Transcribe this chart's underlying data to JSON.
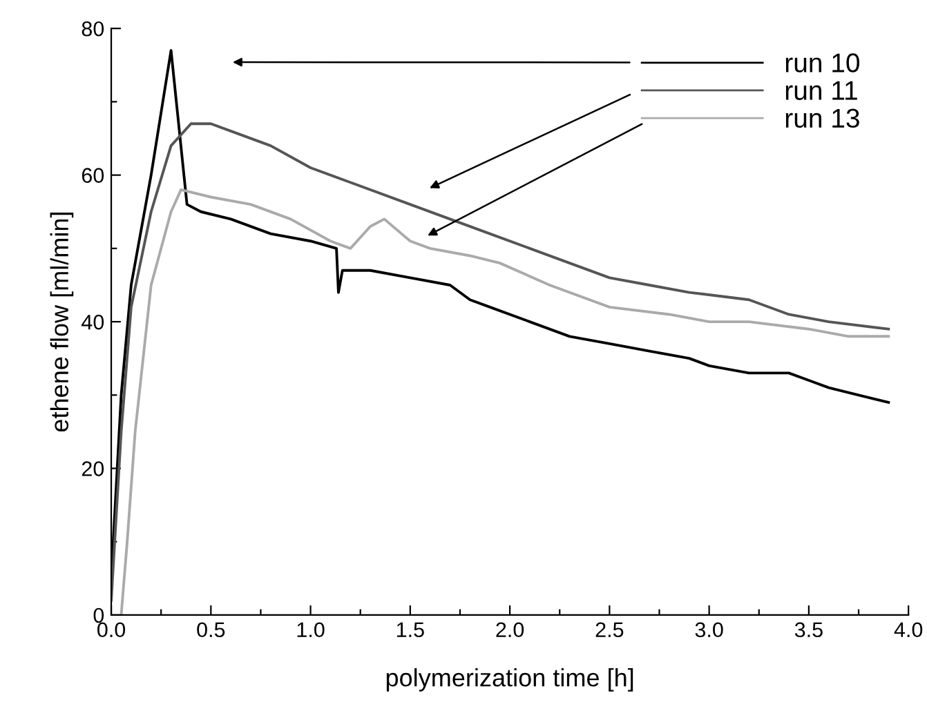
{
  "chart_data": {
    "type": "line",
    "xlabel": "polymerization time [h]",
    "ylabel": "ethene flow [ml/min]",
    "xlim": [
      0,
      4
    ],
    "ylim": [
      0,
      80
    ],
    "xticks": [
      {
        "value": 0,
        "label": "0.0"
      },
      {
        "value": 0.25,
        "label": null
      },
      {
        "value": 0.5,
        "label": "0.5"
      },
      {
        "value": 0.75,
        "label": null
      },
      {
        "value": 1,
        "label": "1.0"
      },
      {
        "value": 1.25,
        "label": null
      },
      {
        "value": 1.5,
        "label": "1.5"
      },
      {
        "value": 1.75,
        "label": null
      },
      {
        "value": 2,
        "label": "2.0"
      },
      {
        "value": 2.25,
        "label": null
      },
      {
        "value": 2.5,
        "label": "2.5"
      },
      {
        "value": 2.75,
        "label": null
      },
      {
        "value": 3,
        "label": "3.0"
      },
      {
        "value": 3.25,
        "label": null
      },
      {
        "value": 3.5,
        "label": "3.5"
      },
      {
        "value": 3.75,
        "label": null
      },
      {
        "value": 4,
        "label": "4.0"
      }
    ],
    "yticks": [
      0,
      {
        "value": 10,
        "label": null
      },
      20,
      {
        "value": 30,
        "label": null
      },
      40,
      {
        "value": 50,
        "label": null
      },
      60,
      {
        "value": 70,
        "label": null
      },
      80
    ],
    "grid": false,
    "legend": "top right",
    "marker": "none",
    "line_style": "solid",
    "series": [
      {
        "name": "run 10",
        "color": "#000000",
        "x": [
          0,
          0.05,
          0.1,
          0.2,
          0.3,
          0.38,
          0.45,
          0.6,
          0.8,
          1.0,
          1.13,
          1.14,
          1.16,
          1.3,
          1.5,
          1.7,
          1.8,
          1.9,
          2.1,
          2.3,
          2.5,
          2.7,
          2.9,
          3.0,
          3.2,
          3.4,
          3.5,
          3.6,
          3.75,
          3.9
        ],
        "values": [
          5,
          30,
          45,
          60,
          77,
          56,
          55,
          54,
          52,
          51,
          50,
          44,
          47,
          47,
          46,
          45,
          43,
          42,
          40,
          38,
          37,
          36,
          35,
          34,
          33,
          33,
          32,
          31,
          30,
          29
        ]
      },
      {
        "name": "run 11",
        "color": "#555555",
        "x": [
          0,
          0.05,
          0.1,
          0.2,
          0.3,
          0.4,
          0.5,
          0.6,
          0.8,
          1.0,
          1.2,
          1.5,
          1.7,
          1.9,
          2.1,
          2.3,
          2.5,
          2.7,
          2.9,
          3.2,
          3.4,
          3.6,
          3.9
        ],
        "values": [
          2,
          25,
          42,
          55,
          64,
          67,
          67,
          66,
          64,
          61,
          59,
          56,
          54,
          52,
          50,
          48,
          46,
          45,
          44,
          43,
          41,
          40,
          39
        ]
      },
      {
        "name": "run 13",
        "color": "#aaaaaa",
        "x": [
          0.05,
          0.08,
          0.12,
          0.2,
          0.3,
          0.35,
          0.5,
          0.7,
          0.9,
          1.1,
          1.2,
          1.3,
          1.37,
          1.5,
          1.6,
          1.8,
          1.95,
          2.2,
          2.5,
          2.8,
          3.0,
          3.2,
          3.5,
          3.7,
          3.9
        ],
        "values": [
          0,
          10,
          25,
          45,
          55,
          58,
          57,
          56,
          54,
          51,
          50,
          53,
          54,
          51,
          50,
          49,
          48,
          45,
          42,
          41,
          40,
          40,
          39,
          38,
          38
        ]
      }
    ]
  }
}
